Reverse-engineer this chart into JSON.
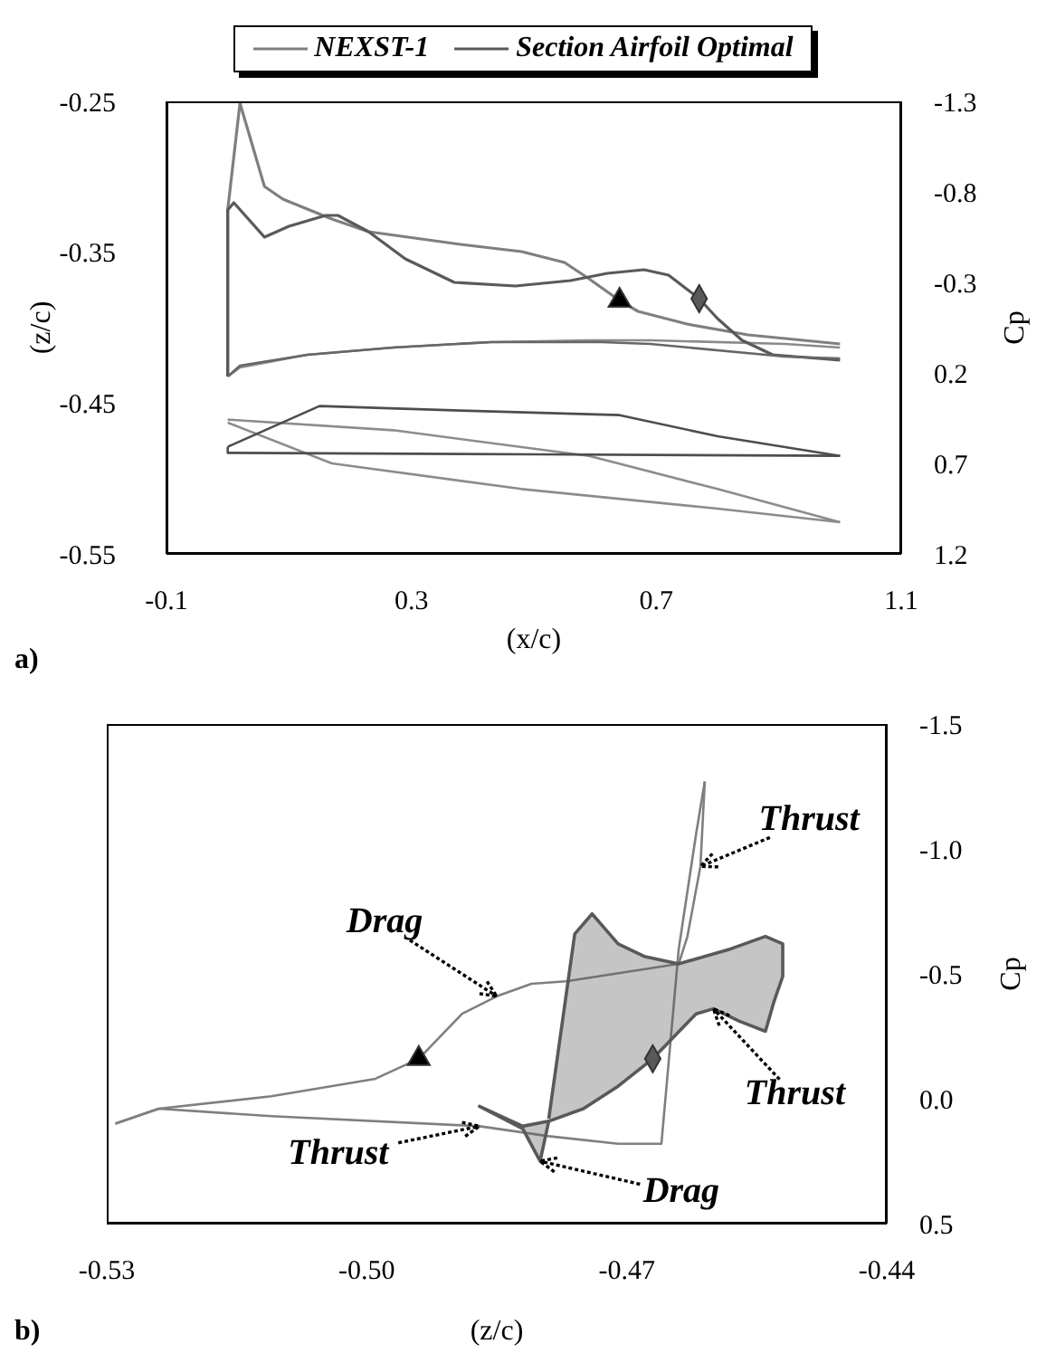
{
  "chart_data": [
    {
      "type": "line",
      "xlabel": "(x/c)",
      "ylabel": "(z/c)",
      "y2label": "Cp",
      "legend": "top",
      "annotations": [
        "a)"
      ],
      "xlim": [
        -0.1,
        1.1
      ],
      "xticks": [
        -0.1,
        0.3,
        0.7,
        1.1
      ],
      "ylim": [
        -0.55,
        -0.25
      ],
      "yticks": [
        -0.55,
        -0.45,
        -0.35,
        -0.25
      ],
      "y2lim": [
        1.2,
        -1.3
      ],
      "y2ticks": [
        1.2,
        0.7,
        0.2,
        -0.3,
        -0.8,
        -1.3
      ],
      "series": [
        {
          "name": "NEXST-1",
          "axis": "y2",
          "color": "#7f7f7f",
          "x": [
            0.0,
            0.0,
            0.02,
            0.06,
            0.09,
            0.17,
            0.23,
            0.38,
            0.48,
            0.55,
            0.59,
            0.64,
            0.67,
            0.75,
            0.85,
            1.0
          ],
          "values": [
            0.22,
            -0.7,
            -1.29,
            -0.83,
            -0.76,
            -0.65,
            -0.58,
            -0.51,
            -0.47,
            -0.41,
            -0.32,
            -0.2,
            -0.14,
            -0.07,
            -0.01,
            0.04
          ]
        },
        {
          "axis": "y2",
          "color": "#8a8a8a",
          "x": [
            0.0,
            0.02,
            0.13,
            0.27,
            0.43,
            0.59,
            0.69,
            0.91,
            1.0
          ],
          "values": [
            0.22,
            0.17,
            0.1,
            0.06,
            0.03,
            0.02,
            0.02,
            0.04,
            0.06
          ]
        },
        {
          "name": "Section Airfoil Optimal",
          "axis": "y2",
          "color": "#595959",
          "x": [
            0.0,
            0.0,
            0.01,
            0.06,
            0.1,
            0.16,
            0.18,
            0.23,
            0.29,
            0.37,
            0.47,
            0.56,
            0.62,
            0.68,
            0.72,
            0.77,
            0.8,
            0.84,
            0.89,
            1.0
          ],
          "values": [
            0.22,
            -0.7,
            -0.74,
            -0.55,
            -0.61,
            -0.67,
            -0.67,
            -0.58,
            -0.43,
            -0.3,
            -0.28,
            -0.31,
            -0.35,
            -0.37,
            -0.34,
            -0.21,
            -0.1,
            0.02,
            0.1,
            0.13
          ]
        },
        {
          "axis": "y2",
          "color": "#666666",
          "x": [
            0.0,
            0.02,
            0.13,
            0.27,
            0.43,
            0.61,
            0.69,
            0.91,
            1.0
          ],
          "values": [
            0.22,
            0.16,
            0.1,
            0.06,
            0.03,
            0.03,
            0.04,
            0.11,
            0.12
          ]
        },
        {
          "color": "#8c8c8c",
          "x": [
            0.0,
            0.27,
            0.59,
            0.8,
            1.0
          ],
          "values": [
            -0.461,
            -0.468,
            -0.485,
            -0.507,
            -0.529
          ]
        },
        {
          "color": "#8c8c8c",
          "x": [
            0.0,
            0.17,
            0.48,
            0.8,
            1.0
          ],
          "values": [
            -0.463,
            -0.49,
            -0.507,
            -0.52,
            -0.529
          ]
        },
        {
          "color": "#4d4d4d",
          "x": [
            0.0,
            0.15,
            0.38,
            0.64,
            0.8,
            1.0
          ],
          "values": [
            -0.479,
            -0.452,
            -0.455,
            -0.458,
            -0.472,
            -0.485
          ]
        },
        {
          "color": "#4d4d4d",
          "x": [
            0.0,
            0.0,
            0.5,
            1.0
          ],
          "values": [
            -0.479,
            -0.483,
            -0.484,
            -0.485
          ]
        },
        {
          "type": "scatter",
          "axis": "y2",
          "marker": "triangle",
          "color": "#000000",
          "x": [
            0.64
          ],
          "values": [
            -0.2
          ]
        },
        {
          "type": "scatter",
          "axis": "y2",
          "marker": "diamond",
          "color": "#595959",
          "x": [
            0.77
          ],
          "values": [
            -0.21
          ]
        }
      ]
    },
    {
      "type": "line",
      "xlabel": "(z/c)",
      "ylabel": "Cp",
      "annotations": [
        {
          "text": "Thrust",
          "x": -0.4615,
          "y": -0.93
        },
        {
          "text": "Drag",
          "x": -0.485,
          "y": -0.41
        },
        {
          "text": "Thrust",
          "x": -0.46,
          "y": -0.36
        },
        {
          "text": "Thrust",
          "x": -0.487,
          "y": 0.11
        },
        {
          "text": "Drag",
          "x": -0.48,
          "y": 0.25
        },
        "b)"
      ],
      "xlim": [
        -0.53,
        -0.44
      ],
      "xticks": [
        -0.53,
        {
          "value": -0.5,
          "label": "-0.50"
        },
        -0.47,
        -0.44
      ],
      "ylim": [
        0.5,
        -1.5
      ],
      "yticks": [
        0.5,
        {
          "value": 0,
          "label": "0.0"
        },
        -0.5,
        {
          "value": -1,
          "label": "-1.0"
        },
        -1.5
      ],
      "series": [
        {
          "color": "#7f7f7f",
          "x": [
            -0.529,
            -0.524,
            -0.511,
            -0.499,
            -0.494,
            -0.489,
            -0.485,
            -0.481,
            -0.477,
            -0.464,
            -0.463,
            -0.4615,
            -0.461
          ],
          "values": [
            0.1,
            0.04,
            -0.01,
            -0.08,
            -0.16,
            -0.34,
            -0.41,
            -0.46,
            -0.47,
            -0.54,
            -0.65,
            -0.93,
            -1.27
          ]
        },
        {
          "color": "#7f7f7f",
          "x": [
            -0.529,
            -0.524,
            -0.511,
            -0.487,
            -0.479,
            -0.471,
            -0.466,
            -0.464,
            -0.462,
            -0.461
          ],
          "values": [
            0.1,
            0.04,
            0.07,
            0.11,
            0.15,
            0.18,
            0.18,
            -0.6,
            -1.06,
            -1.27
          ]
        },
        {
          "type": "area",
          "color": "#595959",
          "x": [
            -0.479,
            -0.476,
            -0.474,
            -0.471,
            -0.468,
            -0.464,
            -0.458,
            -0.454,
            -0.452,
            -0.452,
            -0.453,
            -0.454,
            -0.457,
            -0.46,
            -0.462,
            -0.467,
            -0.471,
            -0.475,
            -0.479,
            -0.482,
            -0.487,
            -0.482,
            -0.48,
            -0.479
          ],
          "values": [
            0.08,
            -0.66,
            -0.74,
            -0.62,
            -0.57,
            -0.54,
            -0.6,
            -0.65,
            -0.62,
            -0.49,
            -0.39,
            -0.27,
            -0.31,
            -0.36,
            -0.34,
            -0.16,
            -0.05,
            0.04,
            0.09,
            0.11,
            0.03,
            0.12,
            0.25,
            0.09
          ]
        },
        {
          "type": "scatter",
          "marker": "triangle",
          "color": "#000000",
          "x": [
            -0.494
          ],
          "values": [
            -0.16
          ]
        },
        {
          "type": "scatter",
          "marker": "diamond",
          "color": "#595959",
          "x": [
            -0.467
          ],
          "values": [
            -0.16
          ]
        }
      ]
    }
  ]
}
